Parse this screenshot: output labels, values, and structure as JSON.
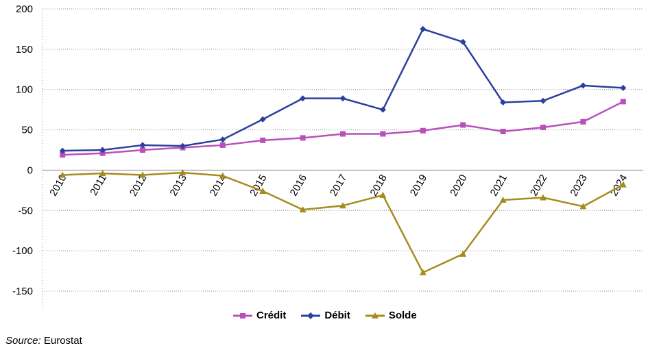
{
  "chart_data": {
    "type": "line",
    "categories": [
      "2010",
      "2011",
      "2012",
      "2013",
      "2014",
      "2015",
      "2016",
      "2017",
      "2018",
      "2019",
      "2020",
      "2021",
      "2022",
      "2023",
      "2024"
    ],
    "series": [
      {
        "name": "Crédit",
        "color": "#b94fbd",
        "marker": "square",
        "values": [
          19,
          21,
          25,
          28,
          31,
          37,
          40,
          45,
          45,
          49,
          56,
          48,
          53,
          60,
          85
        ]
      },
      {
        "name": "Débit",
        "color": "#2a3f9e",
        "marker": "diamond",
        "values": [
          24,
          25,
          31,
          30,
          38,
          63,
          89,
          89,
          75,
          175,
          159,
          84,
          86,
          105,
          102
        ]
      },
      {
        "name": "Solde",
        "color": "#a68b1d",
        "marker": "triangle",
        "values": [
          -6,
          -4,
          -6,
          -3,
          -7,
          -26,
          -49,
          -44,
          -31,
          -127,
          -104,
          -37,
          -34,
          -45,
          -18
        ]
      }
    ],
    "ylim": [
      -150,
      200
    ],
    "yticks": [
      -150,
      -100,
      -50,
      0,
      50,
      100,
      150,
      200
    ],
    "grid": true,
    "legend_position": "bottom"
  },
  "legend": {
    "items": [
      {
        "label": "Crédit",
        "color": "#b94fbd"
      },
      {
        "label": "Débit",
        "color": "#2a3f9e"
      },
      {
        "label": "Solde",
        "color": "#a68b1d"
      }
    ]
  },
  "source": {
    "label": "Source:",
    "text": "Eurostat"
  }
}
